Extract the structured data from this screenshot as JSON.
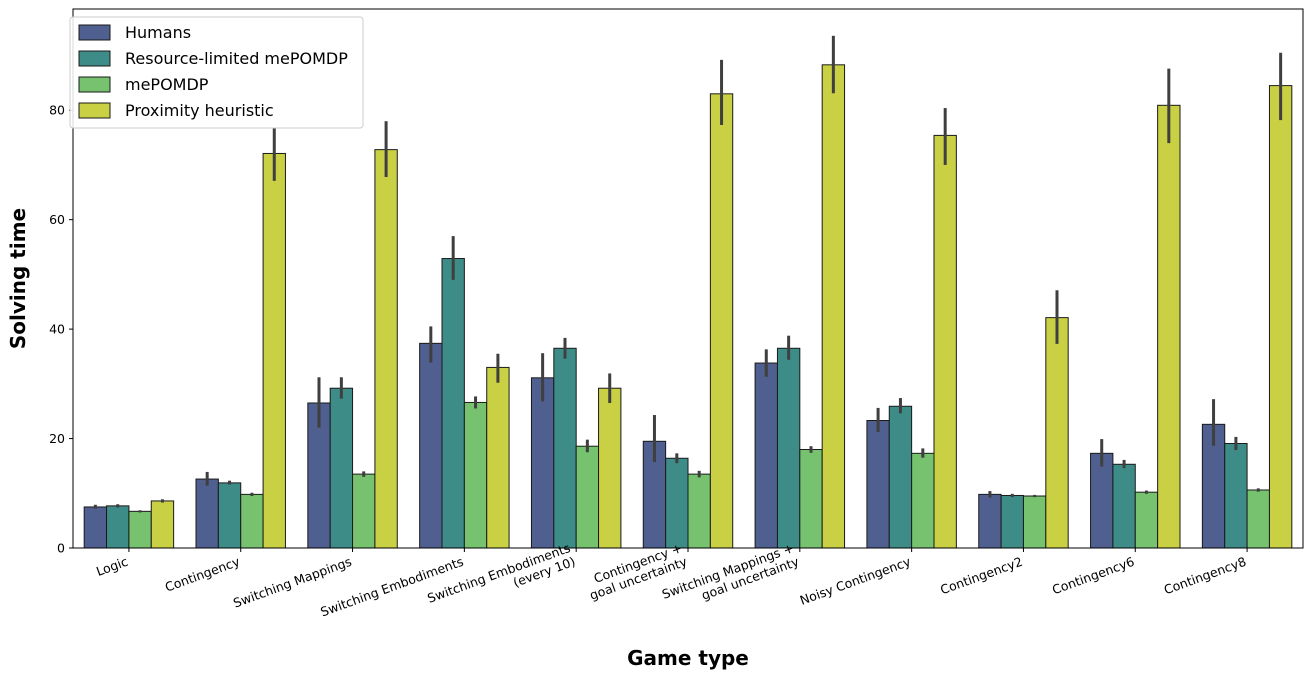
{
  "chart_data": {
    "type": "bar",
    "title": "",
    "xlabel": "Game type",
    "ylabel": "Solving time",
    "ylim": [
      0,
      98.5
    ],
    "yticks": [
      0,
      20,
      40,
      60,
      80
    ],
    "grid": false,
    "legend_position": "top-left",
    "categories": [
      [
        "Logic"
      ],
      [
        "Contingency"
      ],
      [
        "Switching Mappings"
      ],
      [
        "Switching Embodiments"
      ],
      [
        "Switching Embodiments",
        "(every 10)"
      ],
      [
        "Contingency +",
        "goal uncertainty"
      ],
      [
        "Switching Mappings +",
        "goal uncertainty"
      ],
      [
        "Noisy Contingency"
      ],
      [
        "Contingency2"
      ],
      [
        "Contingency6"
      ],
      [
        "Contingency8"
      ]
    ],
    "series": [
      {
        "name": "Humans",
        "color": "#4f5f8f",
        "values": [
          7.5,
          12.6,
          26.5,
          37.4,
          31.1,
          19.5,
          33.8,
          23.3,
          9.8,
          17.3,
          22.6
        ],
        "ci": [
          [
            7.2,
            7.9
          ],
          [
            11.4,
            13.9
          ],
          [
            22.0,
            31.2
          ],
          [
            33.9,
            40.5
          ],
          [
            26.8,
            35.6
          ],
          [
            15.7,
            24.3
          ],
          [
            31.3,
            36.3
          ],
          [
            21.2,
            25.6
          ],
          [
            9.2,
            10.4
          ],
          [
            14.9,
            19.9
          ],
          [
            18.7,
            27.2
          ]
        ]
      },
      {
        "name": "Resource-limited mePOMDP",
        "color": "#3d8c88",
        "values": [
          7.7,
          11.9,
          29.2,
          52.9,
          36.5,
          16.4,
          36.5,
          25.9,
          9.6,
          15.3,
          19.1
        ],
        "ci": [
          [
            7.4,
            8.0
          ],
          [
            11.6,
            12.3
          ],
          [
            27.3,
            31.2
          ],
          [
            49.0,
            57.0
          ],
          [
            34.6,
            38.4
          ],
          [
            15.5,
            17.3
          ],
          [
            34.4,
            38.8
          ],
          [
            24.6,
            27.4
          ],
          [
            9.3,
            9.9
          ],
          [
            14.6,
            16.1
          ],
          [
            17.9,
            20.3
          ]
        ]
      },
      {
        "name": "mePOMDP",
        "color": "#76c26f",
        "values": [
          6.7,
          9.8,
          13.5,
          26.6,
          18.6,
          13.5,
          18.0,
          17.3,
          9.5,
          10.2,
          10.6
        ],
        "ci": [
          [
            6.5,
            6.9
          ],
          [
            9.5,
            10.1
          ],
          [
            13.0,
            14.0
          ],
          [
            25.5,
            27.7
          ],
          [
            17.5,
            19.8
          ],
          [
            12.9,
            14.1
          ],
          [
            17.4,
            18.6
          ],
          [
            16.5,
            18.2
          ],
          [
            9.3,
            9.7
          ],
          [
            9.9,
            10.5
          ],
          [
            10.3,
            10.9
          ]
        ]
      },
      {
        "name": "Proximity heuristic",
        "color": "#c9d043",
        "values": [
          8.6,
          72.1,
          72.8,
          33.0,
          29.2,
          83.0,
          88.3,
          75.4,
          42.1,
          80.9,
          84.5
        ],
        "ci": [
          [
            8.3,
            8.9
          ],
          [
            67.1,
            76.7
          ],
          [
            67.8,
            78.0
          ],
          [
            30.2,
            35.5
          ],
          [
            26.5,
            31.9
          ],
          [
            77.3,
            89.2
          ],
          [
            83.1,
            93.6
          ],
          [
            70.0,
            80.4
          ],
          [
            37.3,
            47.1
          ],
          [
            74.0,
            87.6
          ],
          [
            78.2,
            90.5
          ]
        ]
      }
    ]
  }
}
